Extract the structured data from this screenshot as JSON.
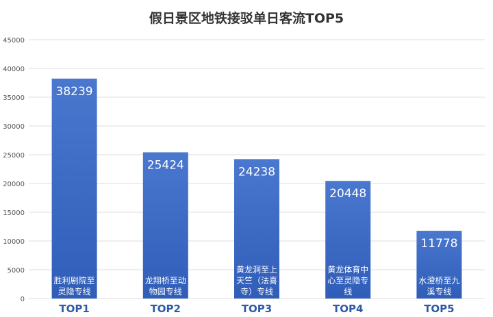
{
  "chart_data": {
    "type": "bar",
    "title": "假日景区地铁接驳单日客流TOP5",
    "xlabel": "",
    "ylabel": "",
    "ylim": [
      0,
      45000
    ],
    "yticks": [
      0,
      5000,
      10000,
      15000,
      20000,
      25000,
      30000,
      35000,
      40000,
      45000
    ],
    "grid": true,
    "legend": "none",
    "categories": [
      "TOP1",
      "TOP2",
      "TOP3",
      "TOP4",
      "TOP5"
    ],
    "values": [
      38239,
      25424,
      24238,
      20448,
      11778
    ],
    "bar_labels": [
      [
        "胜利剧院至",
        "灵隐专线"
      ],
      [
        "龙翔桥至动",
        "物园专线"
      ],
      [
        "黄龙洞至上",
        "天竺（法喜",
        "寺）专线"
      ],
      [
        "黄龙体育中",
        "心至灵隐专",
        "线"
      ],
      [
        "水澄桥至九",
        "溪专线"
      ]
    ],
    "colors": {
      "bar_top": "#4a78cf",
      "bar_bottom": "#2f5db8",
      "category_label": "#2f5aa8",
      "title": "#333333",
      "axis_text": "#555555",
      "grid": "#dddddd"
    }
  }
}
